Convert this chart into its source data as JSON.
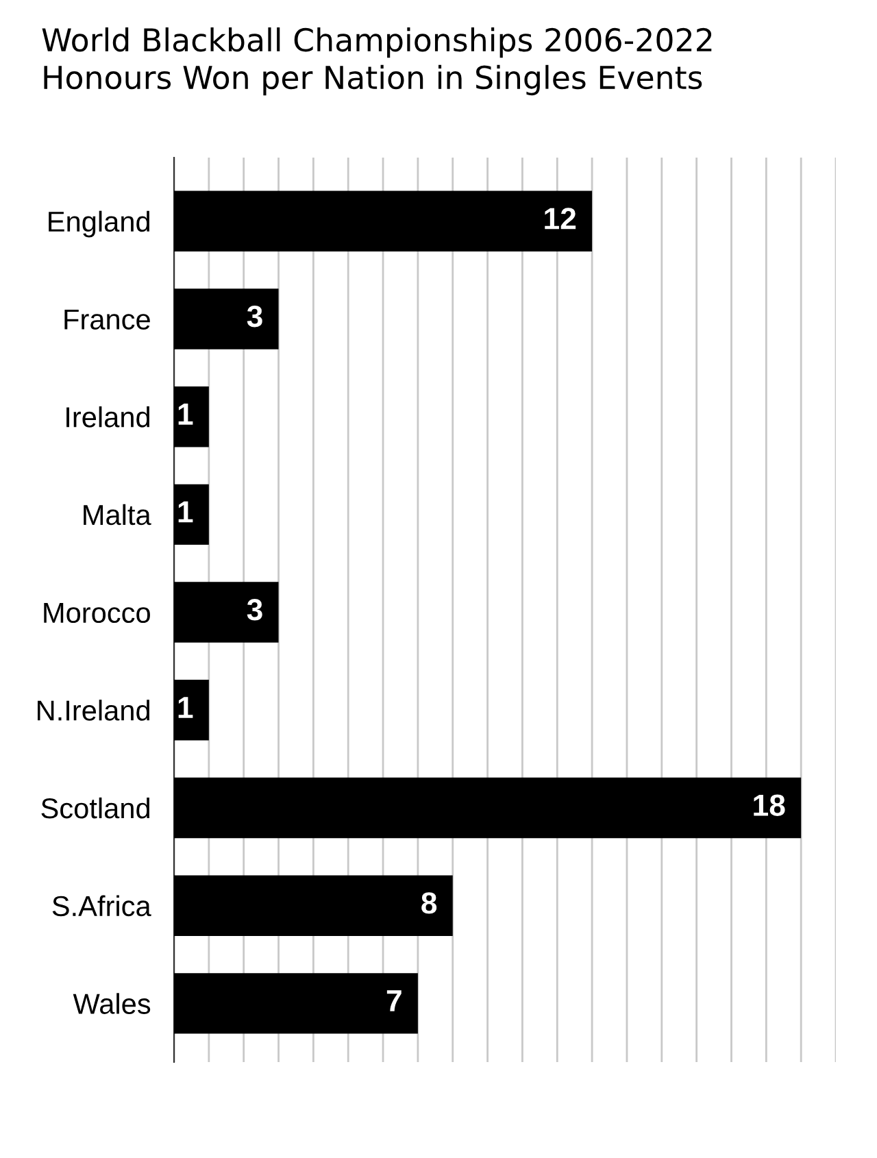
{
  "chart_data": {
    "type": "bar",
    "orientation": "horizontal",
    "title": "World Blackball Championships 2006-2022\nHonours Won per Nation in Singles Events",
    "categories": [
      "England",
      "France",
      "Ireland",
      "Malta",
      "Morocco",
      "N.Ireland",
      "Scotland",
      "S.Africa",
      "Wales"
    ],
    "values": [
      12,
      3,
      1,
      1,
      3,
      1,
      18,
      8,
      7
    ],
    "color": "#000000",
    "data_labels": true,
    "xlim": [
      0,
      19
    ],
    "xticks": [
      {
        "value": 0,
        "label": null
      },
      {
        "value": 1,
        "label": null
      },
      {
        "value": 2,
        "label": null
      },
      {
        "value": 3,
        "label": null
      },
      {
        "value": 4,
        "label": null
      },
      {
        "value": 5,
        "label": null
      },
      {
        "value": 6,
        "label": null
      },
      {
        "value": 7,
        "label": null
      },
      {
        "value": 8,
        "label": null
      },
      {
        "value": 9,
        "label": null
      },
      {
        "value": 10,
        "label": null
      },
      {
        "value": 11,
        "label": null
      },
      {
        "value": 12,
        "label": null
      },
      {
        "value": 13,
        "label": null
      },
      {
        "value": 14,
        "label": null
      },
      {
        "value": 15,
        "label": null
      },
      {
        "value": 16,
        "label": null
      },
      {
        "value": 17,
        "label": null
      },
      {
        "value": 18,
        "label": null
      },
      {
        "value": 19,
        "label": null
      }
    ],
    "tick_labels": "y",
    "grid": "x"
  }
}
